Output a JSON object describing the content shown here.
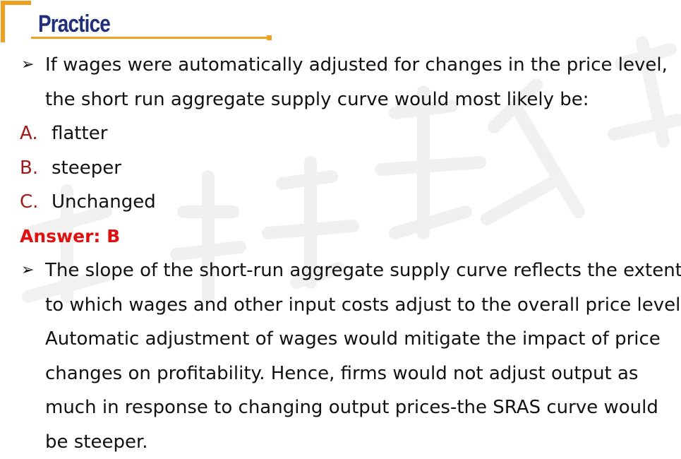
{
  "header": {
    "title": "Practice",
    "accent_color": "#f0a020",
    "title_color": "#1f2f7a"
  },
  "question": {
    "bullet_icon": "arrow-bullet-icon",
    "lines": [
      "If wages were automatically adjusted for changes in the price level,",
      "the short run aggregate supply curve would most likely be:"
    ]
  },
  "options": [
    {
      "letter": "A.",
      "text": "flatter"
    },
    {
      "letter": "B.",
      "text": "steeper"
    },
    {
      "letter": "C.",
      "text": "Unchanged"
    }
  ],
  "answer": {
    "label": "Answer: B",
    "color": "#e01010"
  },
  "explanation": {
    "lines": [
      "The slope of the short-run aggregate supply curve reflects the extent",
      "to which wages and other input costs adjust to the overall price level.",
      "Automatic adjustment of wages would mitigate the impact of price",
      "changes on profitability. Hence, firms would not adjust output as",
      "much in response to changing output prices-the SRAS curve would",
      "be steeper."
    ]
  }
}
